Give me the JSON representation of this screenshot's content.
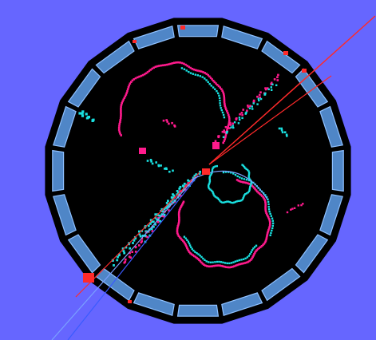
{
  "colors": {
    "background": "#6666ff",
    "frame": "#000000",
    "detector_interior": "#000000",
    "calorimeter_module": "#4f86c7",
    "calorimeter_edge": "#8ec0ff",
    "hits_magenta": "#ff1a8c",
    "hits_cyan": "#19e0e0",
    "track_red": "#ff2a2a",
    "track_blue": "#3a5aff",
    "track_light": "#7aa0ff",
    "hot_cell": "#ff2a2a"
  },
  "detector": {
    "module_count": 20
  }
}
